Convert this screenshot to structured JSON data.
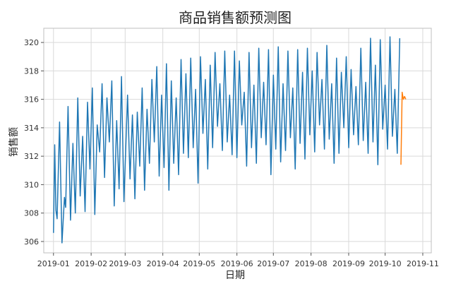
{
  "chart_data": {
    "type": "line",
    "title": "商品销售额预测图",
    "xlabel": "日期",
    "ylabel": "销售额",
    "x_tick_labels": [
      "2019-01",
      "2019-02",
      "2019-03",
      "2019-04",
      "2019-05",
      "2019-06",
      "2019-07",
      "2019-08",
      "2019-09",
      "2019-10",
      "2019-11"
    ],
    "x_ticks": [
      "2019-01-01",
      "2019-02-01",
      "2019-03-01",
      "2019-04-01",
      "2019-05-01",
      "2019-06-01",
      "2019-07-01",
      "2019-08-01",
      "2019-09-01",
      "2019-10-01",
      "2019-11-01"
    ],
    "xlim": [
      "2018-12-24",
      "2019-11-08"
    ],
    "y_ticks": [
      306,
      308,
      310,
      312,
      314,
      316,
      318,
      320
    ],
    "ylim": [
      305.2,
      321.0
    ],
    "grid": true,
    "series": [
      {
        "color": "#1f77b4",
        "x": [
          "2019-01-01",
          "2019-01-02",
          "2019-01-03",
          "2019-01-04",
          "2019-01-06",
          "2019-01-08",
          "2019-01-10",
          "2019-01-11",
          "2019-01-13",
          "2019-01-15",
          "2019-01-17",
          "2019-01-19",
          "2019-01-21",
          "2019-01-23",
          "2019-01-25",
          "2019-01-27",
          "2019-01-29",
          "2019-01-31",
          "2019-02-02",
          "2019-02-04",
          "2019-02-06",
          "2019-02-08",
          "2019-02-10",
          "2019-02-12",
          "2019-02-14",
          "2019-02-16",
          "2019-02-18",
          "2019-02-20",
          "2019-02-22",
          "2019-02-24",
          "2019-02-26",
          "2019-02-28",
          "2019-03-03",
          "2019-03-05",
          "2019-03-07",
          "2019-03-09",
          "2019-03-11",
          "2019-03-13",
          "2019-03-15",
          "2019-03-17",
          "2019-03-19",
          "2019-03-21",
          "2019-03-23",
          "2019-03-25",
          "2019-03-27",
          "2019-03-29",
          "2019-03-31",
          "2019-04-02",
          "2019-04-04",
          "2019-04-06",
          "2019-04-08",
          "2019-04-10",
          "2019-04-12",
          "2019-04-14",
          "2019-04-16",
          "2019-04-18",
          "2019-04-20",
          "2019-04-22",
          "2019-04-24",
          "2019-04-26",
          "2019-04-28",
          "2019-04-30",
          "2019-05-02",
          "2019-05-04",
          "2019-05-06",
          "2019-05-08",
          "2019-05-10",
          "2019-05-12",
          "2019-05-14",
          "2019-05-16",
          "2019-05-18",
          "2019-05-20",
          "2019-05-22",
          "2019-05-24",
          "2019-05-26",
          "2019-05-28",
          "2019-05-30",
          "2019-06-01",
          "2019-06-03",
          "2019-06-05",
          "2019-06-07",
          "2019-06-09",
          "2019-06-11",
          "2019-06-13",
          "2019-06-15",
          "2019-06-17",
          "2019-06-19",
          "2019-06-21",
          "2019-06-23",
          "2019-06-25",
          "2019-06-27",
          "2019-06-29",
          "2019-07-01",
          "2019-07-03",
          "2019-07-05",
          "2019-07-07",
          "2019-07-09",
          "2019-07-11",
          "2019-07-13",
          "2019-07-15",
          "2019-07-17",
          "2019-07-19",
          "2019-07-21",
          "2019-07-23",
          "2019-07-25",
          "2019-07-27",
          "2019-07-29",
          "2019-07-31",
          "2019-08-02",
          "2019-08-04",
          "2019-08-06",
          "2019-08-08",
          "2019-08-10",
          "2019-08-12",
          "2019-08-14",
          "2019-08-16",
          "2019-08-18",
          "2019-08-20",
          "2019-08-22",
          "2019-08-24",
          "2019-08-26",
          "2019-08-28",
          "2019-08-30",
          "2019-09-01",
          "2019-09-03",
          "2019-09-05",
          "2019-09-07",
          "2019-09-09",
          "2019-09-11",
          "2019-09-13",
          "2019-09-15",
          "2019-09-17",
          "2019-09-19",
          "2019-09-21",
          "2019-09-23",
          "2019-09-25",
          "2019-09-27",
          "2019-09-29",
          "2019-10-01",
          "2019-10-03",
          "2019-10-05",
          "2019-10-07",
          "2019-10-09",
          "2019-10-11",
          "2019-10-13"
        ],
        "values": [
          306.6,
          312.8,
          308.2,
          307.6,
          314.4,
          305.9,
          309.1,
          308.4,
          315.5,
          307.5,
          312.9,
          308.0,
          316.1,
          309.2,
          313.4,
          308.1,
          315.8,
          311.1,
          316.8,
          307.9,
          314.2,
          312.3,
          317.1,
          310.5,
          316.1,
          313.0,
          317.3,
          308.5,
          314.5,
          309.7,
          317.6,
          308.8,
          316.3,
          310.4,
          314.9,
          309.0,
          315.1,
          311.3,
          316.8,
          309.6,
          315.3,
          311.5,
          317.4,
          313.0,
          318.3,
          310.6,
          316.3,
          311.2,
          318.5,
          309.6,
          317.3,
          311.5,
          316.1,
          310.7,
          318.8,
          312.2,
          317.8,
          311.9,
          318.9,
          312.6,
          316.7,
          310.1,
          319.0,
          313.6,
          317.4,
          311.1,
          318.4,
          312.6,
          319.3,
          314.1,
          317.1,
          312.4,
          319.4,
          313.0,
          316.3,
          312.1,
          319.4,
          311.9,
          318.7,
          314.2,
          316.5,
          311.3,
          319.3,
          312.6,
          317.0,
          311.5,
          319.6,
          313.3,
          317.2,
          312.8,
          319.5,
          310.7,
          317.7,
          312.5,
          319.7,
          311.6,
          317.1,
          312.4,
          319.4,
          313.3,
          316.8,
          311.1,
          319.5,
          312.9,
          317.9,
          311.8,
          319.6,
          313.5,
          318.0,
          312.3,
          319.3,
          314.2,
          317.4,
          312.5,
          319.8,
          313.2,
          317.1,
          311.5,
          318.9,
          312.2,
          317.9,
          314.0,
          319.0,
          312.6,
          318.1,
          313.5,
          316.9,
          312.8,
          319.6,
          313.1,
          317.2,
          312.2,
          320.3,
          313.0,
          318.4,
          311.4,
          320.2,
          313.9,
          317.0,
          312.5,
          320.4,
          313.4,
          316.7,
          312.2,
          320.3
        ]
      },
      {
        "color": "#ff7f0e",
        "x": [
          "2019-10-14",
          "2019-10-15",
          "2019-10-16",
          "2019-10-17",
          "2019-10-18"
        ],
        "values": [
          311.4,
          316.5,
          316.0,
          316.2,
          316.0
        ]
      }
    ]
  }
}
